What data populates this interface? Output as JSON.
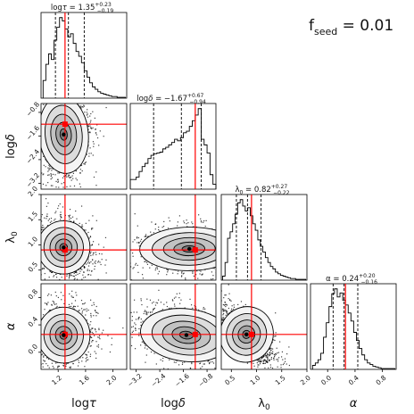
{
  "annotation": {
    "seed_text": "f",
    "seed_sub": "seed",
    "seed_value": " = 0.01"
  },
  "chart_data": {
    "type": "corner",
    "parameters": [
      {
        "name": "logτ",
        "label_main": "log",
        "label_sym": "τ",
        "title": "logτ = 1.35",
        "title_main": "log",
        "title_sym": "τ",
        "title_value": " = 1.35",
        "plus": "+0.23",
        "minus": "−0.19",
        "median": 1.35,
        "q16": 1.16,
        "q84": 1.58,
        "truth": 1.3,
        "range": [
          0.95,
          2.2
        ],
        "ticks": [
          1.2,
          1.6,
          2.0
        ],
        "tick_labels": [
          "1.2",
          "1.6",
          "2.0"
        ],
        "hist_x": [
          1.0,
          1.04,
          1.08,
          1.12,
          1.16,
          1.2,
          1.24,
          1.28,
          1.32,
          1.36,
          1.4,
          1.44,
          1.48,
          1.52,
          1.56,
          1.6,
          1.64,
          1.68,
          1.72,
          1.76,
          1.8,
          1.84,
          1.88,
          1.92,
          1.96,
          2.0,
          2.04,
          2.08,
          2.12,
          2.16
        ],
        "hist_y": [
          0.22,
          0.42,
          0.55,
          0.48,
          0.72,
          0.88,
          1.0,
          0.96,
          0.86,
          0.76,
          0.8,
          0.68,
          0.58,
          0.52,
          0.44,
          0.34,
          0.26,
          0.19,
          0.14,
          0.11,
          0.08,
          0.06,
          0.05,
          0.04,
          0.03,
          0.02,
          0.02,
          0.01,
          0.01,
          0.01
        ]
      },
      {
        "name": "logδ",
        "label_main": "log",
        "label_sym": "δ",
        "title": "logδ = −1.67",
        "title_main": "log",
        "title_sym": "δ",
        "title_value": " = −1.67",
        "plus": "+0.67",
        "minus": "−0.94",
        "median": -1.67,
        "q16": -2.61,
        "q84": -1.0,
        "truth": -1.2,
        "range": [
          -3.4,
          -0.5
        ],
        "ticks": [
          -3.2,
          -2.4,
          -1.6,
          -0.8
        ],
        "tick_labels": [
          "−3.2",
          "−2.4",
          "−1.6",
          "−0.8"
        ],
        "hist_x": [
          -3.35,
          -3.25,
          -3.15,
          -3.05,
          -2.95,
          -2.85,
          -2.75,
          -2.65,
          -2.55,
          -2.45,
          -2.35,
          -2.25,
          -2.15,
          -2.05,
          -1.95,
          -1.85,
          -1.75,
          -1.65,
          -1.55,
          -1.45,
          -1.35,
          -1.25,
          -1.15,
          -1.05,
          -0.95,
          -0.85,
          -0.75,
          -0.65,
          -0.55
        ],
        "hist_y": [
          0.12,
          0.12,
          0.15,
          0.22,
          0.28,
          0.32,
          0.38,
          0.42,
          0.44,
          0.45,
          0.46,
          0.5,
          0.52,
          0.55,
          0.58,
          0.62,
          0.6,
          0.64,
          0.7,
          0.72,
          0.78,
          0.85,
          0.92,
          1.0,
          0.62,
          0.55,
          0.45,
          0.18,
          0.06
        ]
      },
      {
        "name": "λ0",
        "label_main": "λ",
        "label_sym": "0",
        "title": "λ0 = 0.82",
        "title_main": "λ",
        "title_sym": "0",
        "title_value": " = 0.82",
        "plus": "+0.27",
        "minus": "−0.22",
        "median": 0.82,
        "q16": 0.6,
        "q84": 1.09,
        "truth": 0.9,
        "range": [
          0.3,
          2.0
        ],
        "ticks": [
          0.5,
          1.0,
          1.5,
          2.0
        ],
        "tick_labels": [
          "0.5",
          "1.0",
          "1.5",
          "2.0"
        ],
        "hist_x": [
          0.35,
          0.4,
          0.45,
          0.5,
          0.55,
          0.6,
          0.65,
          0.7,
          0.75,
          0.8,
          0.85,
          0.9,
          0.95,
          1.0,
          1.05,
          1.1,
          1.15,
          1.2,
          1.25,
          1.3,
          1.35,
          1.4,
          1.45,
          1.5,
          1.55,
          1.6,
          1.65,
          1.7,
          1.75,
          1.8,
          1.85,
          1.9,
          1.95
        ],
        "hist_y": [
          0.05,
          0.22,
          0.52,
          0.6,
          0.7,
          0.82,
          0.96,
          1.0,
          0.92,
          0.86,
          0.9,
          0.8,
          0.7,
          0.62,
          0.5,
          0.42,
          0.35,
          0.28,
          0.22,
          0.17,
          0.14,
          0.1,
          0.08,
          0.06,
          0.05,
          0.04,
          0.03,
          0.02,
          0.02,
          0.01,
          0.01,
          0.01,
          0.01
        ]
      },
      {
        "name": "α",
        "label_main": "α",
        "label_sym": "",
        "title": "α = 0.24",
        "title_main": "α",
        "title_sym": "",
        "title_value": " = 0.24",
        "plus": "+0.20",
        "minus": "−0.16",
        "median": 0.24,
        "q16": 0.08,
        "q84": 0.44,
        "truth": 0.26,
        "range": [
          -0.25,
          1.0
        ],
        "ticks": [
          0.0,
          0.4,
          0.8
        ],
        "tick_labels": [
          "0.0",
          "0.4",
          "0.8"
        ],
        "hist_x": [
          -0.2,
          -0.16,
          -0.12,
          -0.08,
          -0.04,
          0.0,
          0.04,
          0.08,
          0.12,
          0.16,
          0.2,
          0.24,
          0.28,
          0.32,
          0.36,
          0.4,
          0.44,
          0.48,
          0.52,
          0.56,
          0.6,
          0.64,
          0.68,
          0.72,
          0.76,
          0.8,
          0.84,
          0.88,
          0.92,
          0.96
        ],
        "hist_y": [
          0.05,
          0.08,
          0.12,
          0.2,
          0.4,
          0.58,
          0.78,
          0.94,
          1.0,
          0.9,
          0.95,
          0.86,
          0.8,
          0.7,
          0.6,
          0.46,
          0.36,
          0.26,
          0.18,
          0.12,
          0.08,
          0.06,
          0.04,
          0.03,
          0.02,
          0.01,
          0.01,
          0.01,
          0.01,
          0.01
        ]
      }
    ],
    "pairs": [
      {
        "row": 1,
        "col": 0,
        "center": [
          1.28,
          -1.55
        ],
        "spread": [
          0.15,
          0.55
        ],
        "corr": 0.1
      },
      {
        "row": 2,
        "col": 0,
        "center": [
          1.28,
          0.95
        ],
        "spread": [
          0.16,
          0.22
        ],
        "corr": -0.2
      },
      {
        "row": 2,
        "col": 1,
        "center": [
          -1.4,
          0.92
        ],
        "spread": [
          0.7,
          0.18
        ],
        "corr": 0.05
      },
      {
        "row": 3,
        "col": 0,
        "center": [
          1.28,
          0.25
        ],
        "spread": [
          0.16,
          0.17
        ],
        "corr": 0.1
      },
      {
        "row": 3,
        "col": 1,
        "center": [
          -1.5,
          0.25
        ],
        "spread": [
          0.65,
          0.16
        ],
        "corr": -0.35
      },
      {
        "row": 3,
        "col": 2,
        "center": [
          0.8,
          0.26
        ],
        "spread": [
          0.22,
          0.17
        ],
        "corr": -0.75
      }
    ],
    "colors": {
      "truth": "#ff0000",
      "contour": "#000000",
      "hist": "#000000"
    }
  }
}
